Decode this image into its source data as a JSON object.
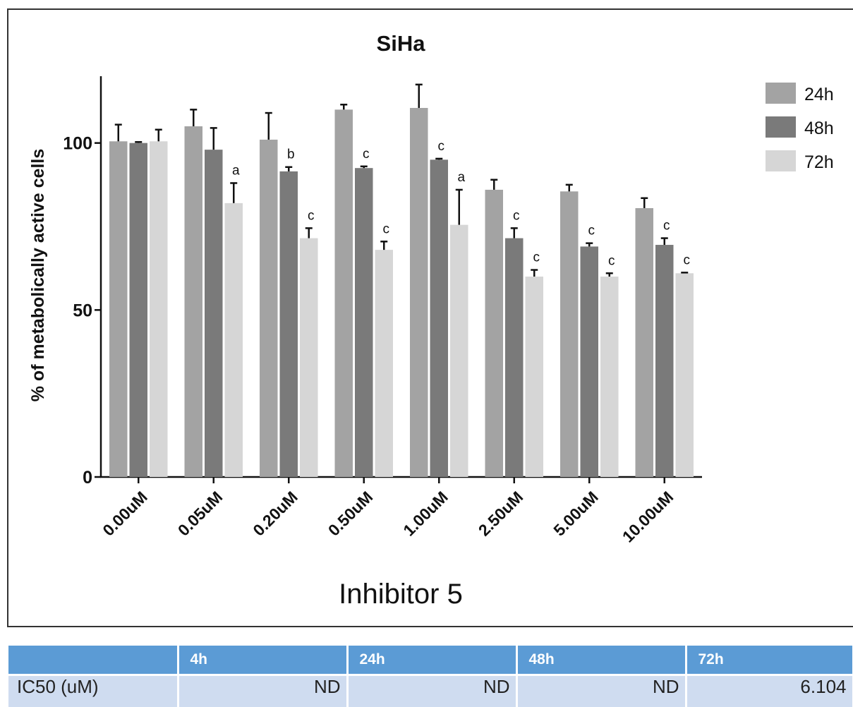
{
  "chart_data": {
    "type": "bar",
    "title": "SiHa",
    "xlabel": "Inhibitor 5",
    "ylabel": "% of metabolically active cells",
    "ylim": [
      0,
      120
    ],
    "yticks": [
      0,
      50,
      100
    ],
    "categories": [
      "0.00uM",
      "0.05uM",
      "0.20uM",
      "0.50uM",
      "1.00uM",
      "2.50uM",
      "5.00uM",
      "10.00uM"
    ],
    "series": [
      {
        "name": "24h",
        "color": "#a3a3a3",
        "values": [
          100.5,
          105,
          101,
          110,
          110.5,
          86,
          85.5,
          80.5
        ],
        "errors": [
          5,
          5,
          8,
          1.5,
          7,
          3,
          2,
          3
        ],
        "annotations": [
          "",
          "",
          "",
          "",
          "",
          "",
          "",
          ""
        ]
      },
      {
        "name": "48h",
        "color": "#7a7a7a",
        "values": [
          100,
          98,
          91.5,
          92.5,
          95,
          71.5,
          69,
          69.5
        ],
        "errors": [
          0.3,
          6.5,
          1.3,
          0.5,
          0.3,
          3,
          1,
          2
        ],
        "annotations": [
          "",
          "",
          "b",
          "c",
          "c",
          "c",
          "c",
          "c"
        ]
      },
      {
        "name": "72h",
        "color": "#d6d6d6",
        "values": [
          100.5,
          82,
          71.5,
          68,
          75.5,
          60,
          60,
          61
        ],
        "errors": [
          3.5,
          6,
          3,
          2.5,
          10.5,
          2,
          1,
          0.2
        ],
        "annotations": [
          "",
          "a",
          "c",
          "c",
          "a",
          "c",
          "c",
          "c"
        ]
      }
    ],
    "legend": "right",
    "grid": false
  },
  "table": {
    "headers": [
      "",
      "4h",
      "24h",
      "48h",
      "72h"
    ],
    "rows": [
      {
        "label": "IC50 (uM)",
        "cells": [
          "ND",
          "ND",
          "ND",
          "6.104"
        ]
      }
    ]
  }
}
